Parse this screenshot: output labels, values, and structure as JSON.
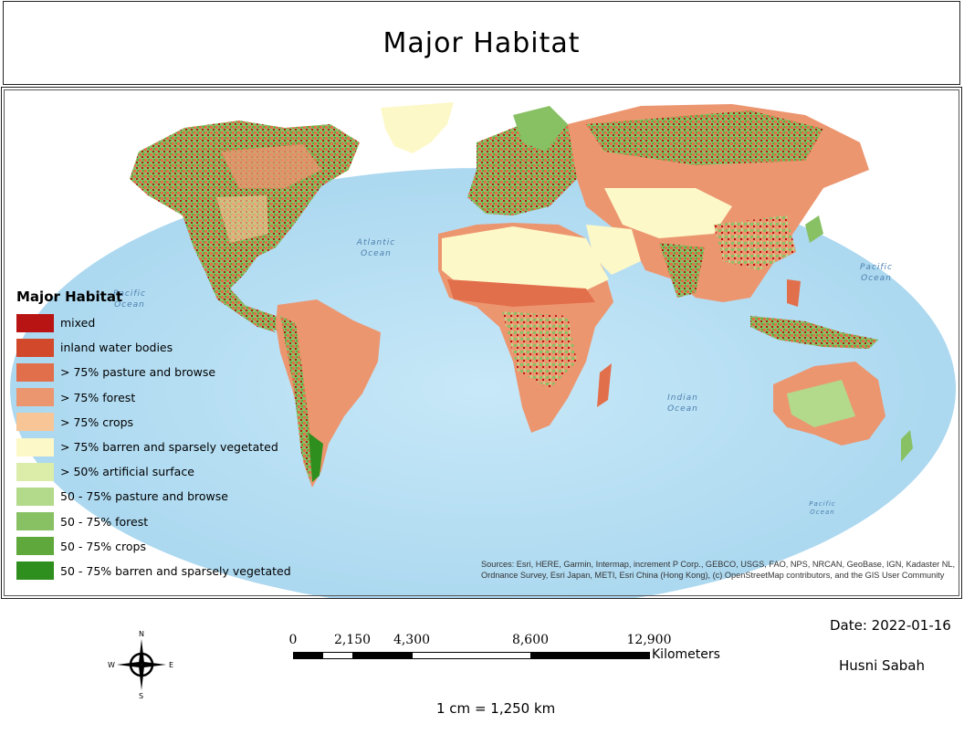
{
  "title": "Major Habitat",
  "legend": {
    "title": "Major Habitat",
    "items": [
      {
        "label": "mixed",
        "color": "#b81414"
      },
      {
        "label": "inland water bodies",
        "color": "#d1482b"
      },
      {
        "label": "> 75% pasture and browse",
        "color": "#e26f4b"
      },
      {
        "label": "> 75% forest",
        "color": "#ec9670"
      },
      {
        "label": "> 75% crops",
        "color": "#f7c596"
      },
      {
        "label": "> 75% barren and sparsely vegetated",
        "color": "#fdf8c8"
      },
      {
        "label": "> 50% artificial surface",
        "color": "#dcedaa"
      },
      {
        "label": "50 - 75% pasture and browse",
        "color": "#b3d98b"
      },
      {
        "label": "50 - 75% forest",
        "color": "#88c064"
      },
      {
        "label": "50 - 75% crops",
        "color": "#5ea83c"
      },
      {
        "label": "50 - 75% barren and sparsely vegetated",
        "color": "#2f8f1e"
      }
    ]
  },
  "oceans": [
    {
      "name": "Atlantic",
      "sub": "Ocean"
    },
    {
      "name": "Pacific",
      "sub": "Ocean"
    },
    {
      "name": "Pacific",
      "sub": "Ocean"
    },
    {
      "name": "Indian",
      "sub": "Ocean"
    },
    {
      "name": "Pacific",
      "sub": "Ocean"
    }
  ],
  "sources": "Sources: Esri, HERE, Garmin, Intermap, increment P Corp., GEBCO, USGS, FAO, NPS, NRCAN, GeoBase, IGN, Kadaster NL, Ordnance Survey, Esri Japan, METI, Esri China (Hong Kong), (c) OpenStreetMap contributors, and the GIS User Community",
  "scale_bar": {
    "ticks": [
      "0",
      "2,150",
      "4,300",
      "8,600",
      "12,900"
    ],
    "unit": "Kilometers"
  },
  "scale_ratio": "1 cm = 1,250 km",
  "date": "Date: 2022-01-16",
  "author": "Husni Sabah",
  "compass": {
    "n": "N",
    "s": "S",
    "e": "E",
    "w": "W"
  },
  "colors": {
    "ocean": "#bfe3f5",
    "ocean_deep": "#a9d6ef"
  }
}
